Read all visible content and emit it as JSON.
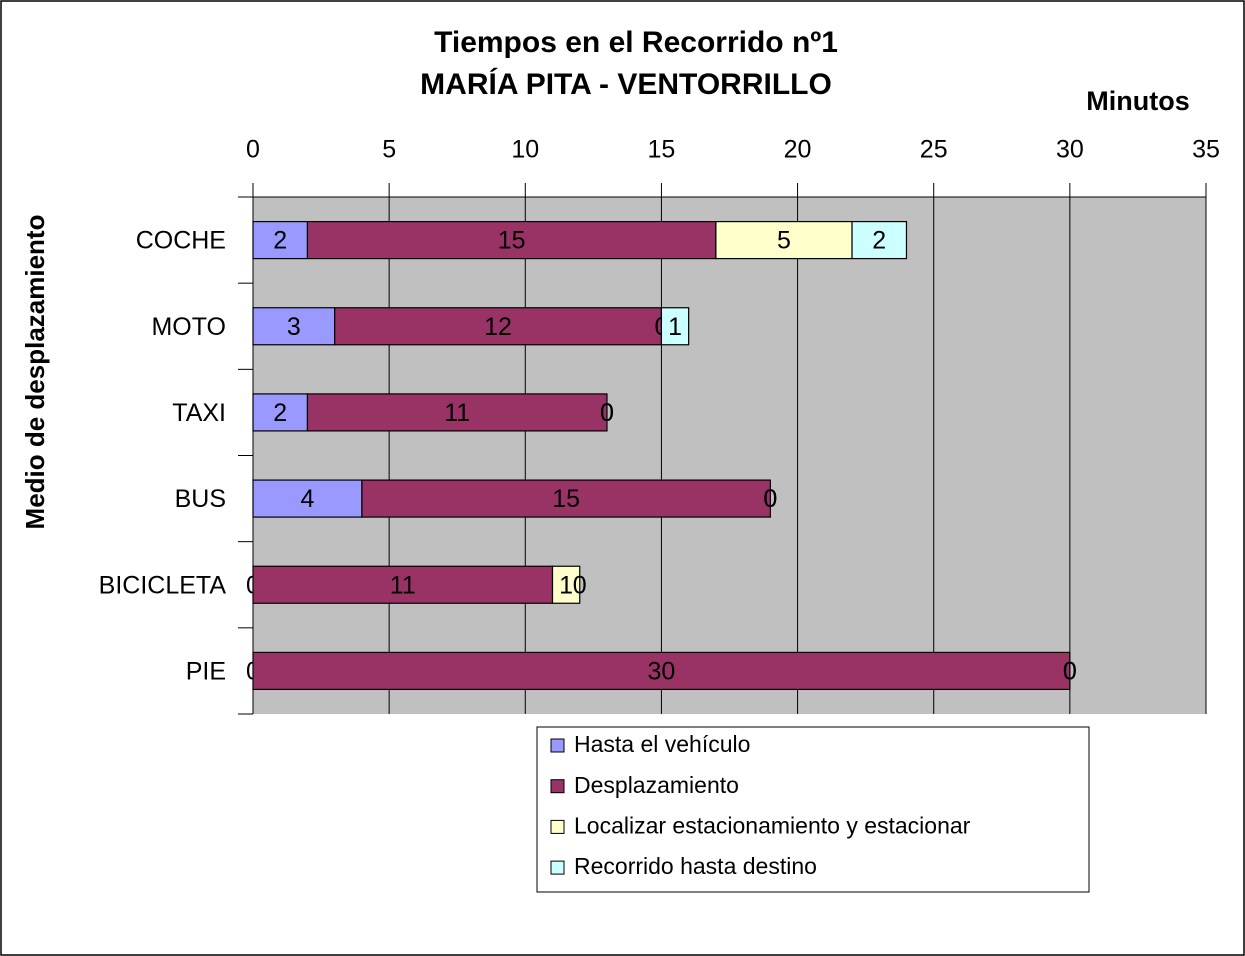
{
  "chart_data": {
    "type": "bar",
    "orientation": "horizontal",
    "stacked": true,
    "title": [
      "Tiempos en el Recorrido nº1",
      "MARÍA PITA - VENTORRILLO"
    ],
    "x_label": "Minutos",
    "y_label": "Medio de desplazamiento",
    "categories": [
      "COCHE",
      "MOTO",
      "TAXI",
      "BUS",
      "BICICLETA",
      "PIE"
    ],
    "series": [
      {
        "name": "Hasta el vehículo",
        "color": "#9999ff",
        "values": [
          2,
          3,
          2,
          4,
          0,
          0
        ]
      },
      {
        "name": "Desplazamiento",
        "color": "#993366",
        "values": [
          15,
          12,
          11,
          15,
          11,
          30
        ]
      },
      {
        "name": "Localizar estacionamiento y estacionar",
        "color": "#ffffcc",
        "values": [
          5,
          0,
          0,
          0,
          1,
          0
        ]
      },
      {
        "name": "Recorrido hasta destino",
        "color": "#ccffff",
        "values": [
          2,
          1,
          0,
          0,
          0,
          0
        ]
      }
    ],
    "xlim": [
      0,
      35
    ],
    "xticks": [
      0,
      5,
      10,
      15,
      20,
      25,
      30,
      35
    ],
    "grid": true,
    "background": "#c0c0c0"
  }
}
